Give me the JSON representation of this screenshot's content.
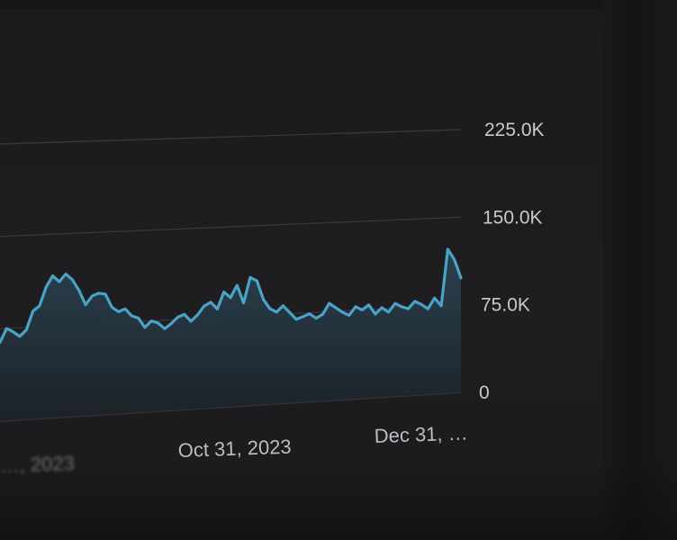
{
  "chart_data": {
    "type": "area",
    "x_axis": {
      "tick_labels": [
        "…, 2023",
        "Oct 31, 2023",
        "Dec 31, …"
      ]
    },
    "y_axis": {
      "ticks": [
        0,
        75000,
        150000,
        225000
      ],
      "tick_labels": [
        "0",
        "75.0K",
        "150.0K",
        "225.0K"
      ],
      "position": "right",
      "ylim": [
        0,
        225000
      ]
    },
    "grid": true,
    "series": [
      {
        "values": [
          64000,
          75000,
          72000,
          68000,
          73000,
          88000,
          92000,
          107000,
          116000,
          111000,
          117000,
          112000,
          103000,
          91000,
          98000,
          100000,
          99000,
          88000,
          84000,
          86000,
          80000,
          78000,
          70000,
          75000,
          73000,
          68000,
          72000,
          77000,
          79000,
          73000,
          78000,
          85000,
          88000,
          82000,
          96000,
          91000,
          101000,
          86000,
          107000,
          104000,
          88000,
          80000,
          77000,
          82000,
          76000,
          70000,
          72000,
          74000,
          70000,
          73000,
          82000,
          78000,
          74000,
          71000,
          78000,
          75000,
          79000,
          71000,
          76000,
          72000,
          79000,
          76000,
          74000,
          80000,
          77000,
          73000,
          82000,
          75000,
          123000,
          114000,
          98000
        ]
      }
    ],
    "colors": {
      "line": "#4aa3c7",
      "fill_top": "#2b4352",
      "fill_bottom": "#1c2228",
      "grid": "#3a3a3d",
      "tick": "#c9c9cc"
    }
  }
}
